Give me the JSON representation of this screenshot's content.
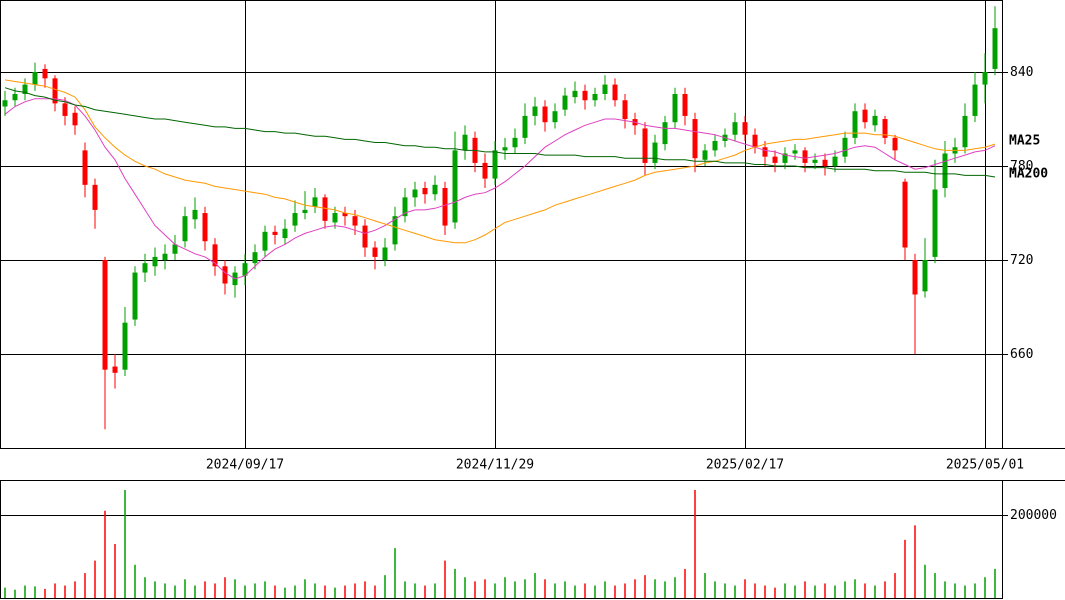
{
  "chart_data": [
    {
      "type": "candlestick",
      "up_color": "#00a000",
      "down_color": "#ff0000",
      "ylim": [
        600,
        886
      ],
      "yticks": [
        660,
        720,
        780,
        840
      ],
      "grid": true,
      "categories": [
        null,
        null,
        null,
        null,
        null,
        null,
        null,
        null,
        null,
        null,
        null,
        null,
        null,
        null,
        null,
        null,
        null,
        null,
        null,
        null,
        null,
        null,
        null,
        null,
        "2024/09/17",
        null,
        null,
        null,
        null,
        null,
        null,
        null,
        null,
        null,
        null,
        null,
        null,
        null,
        null,
        null,
        null,
        null,
        null,
        null,
        null,
        null,
        null,
        null,
        null,
        "2024/11/29",
        null,
        null,
        null,
        null,
        null,
        null,
        null,
        null,
        null,
        null,
        null,
        null,
        null,
        null,
        null,
        null,
        null,
        null,
        null,
        null,
        null,
        null,
        null,
        null,
        "2025/02/17",
        null,
        null,
        null,
        null,
        null,
        null,
        null,
        null,
        null,
        null,
        null,
        null,
        null,
        null,
        null,
        null,
        null,
        null,
        null,
        null,
        null,
        null,
        null,
        "2025/05/01",
        null
      ],
      "open": [
        818,
        822,
        826,
        832,
        842,
        836,
        820,
        814,
        790,
        768,
        720,
        652,
        650,
        682,
        712,
        716,
        720,
        724,
        732,
        746,
        750,
        730,
        716,
        704,
        710,
        718,
        726,
        738,
        734,
        742,
        750,
        754,
        760,
        744,
        750,
        748,
        742,
        728,
        720,
        730,
        748,
        760,
        766,
        762,
        766,
        744,
        790,
        798,
        782,
        772,
        790,
        792,
        798,
        812,
        818,
        808,
        816,
        824,
        828,
        822,
        826,
        832,
        822,
        810,
        804,
        782,
        794,
        808,
        826,
        810,
        784,
        790,
        796,
        800,
        808,
        800,
        792,
        786,
        782,
        788,
        790,
        782,
        784,
        780,
        786,
        798,
        816,
        806,
        810,
        798,
        770,
        720,
        700,
        722,
        766,
        788,
        792,
        812,
        832,
        842
      ],
      "high": [
        828,
        830,
        836,
        846,
        845,
        838,
        824,
        818,
        795,
        772,
        722,
        660,
        690,
        716,
        724,
        728,
        730,
        736,
        754,
        760,
        754,
        734,
        720,
        716,
        724,
        730,
        742,
        742,
        746,
        758,
        764,
        766,
        762,
        754,
        754,
        752,
        746,
        732,
        734,
        754,
        766,
        770,
        770,
        774,
        770,
        802,
        806,
        802,
        788,
        796,
        798,
        804,
        820,
        824,
        822,
        820,
        830,
        834,
        832,
        830,
        838,
        836,
        826,
        814,
        808,
        800,
        812,
        830,
        830,
        814,
        794,
        800,
        804,
        814,
        812,
        804,
        796,
        790,
        792,
        794,
        792,
        788,
        788,
        790,
        802,
        820,
        820,
        816,
        812,
        800,
        772,
        724,
        734,
        784,
        796,
        798,
        820,
        840,
        852,
        882
      ],
      "low": [
        812,
        818,
        822,
        828,
        830,
        815,
        806,
        800,
        760,
        740,
        612,
        638,
        646,
        678,
        706,
        710,
        714,
        720,
        728,
        740,
        726,
        710,
        698,
        696,
        704,
        714,
        722,
        730,
        730,
        738,
        746,
        750,
        740,
        740,
        742,
        736,
        722,
        714,
        716,
        726,
        744,
        754,
        756,
        758,
        736,
        740,
        784,
        776,
        766,
        768,
        784,
        788,
        794,
        806,
        802,
        804,
        812,
        820,
        816,
        818,
        822,
        818,
        804,
        800,
        774,
        778,
        790,
        804,
        806,
        776,
        780,
        786,
        792,
        796,
        796,
        788,
        780,
        776,
        778,
        784,
        776,
        778,
        774,
        776,
        782,
        794,
        804,
        802,
        794,
        784,
        720,
        660,
        696,
        718,
        760,
        782,
        788,
        808,
        820,
        838
      ],
      "close": [
        822,
        826,
        832,
        840,
        836,
        820,
        812,
        806,
        768,
        752,
        650,
        648,
        680,
        712,
        718,
        722,
        724,
        730,
        748,
        752,
        732,
        716,
        705,
        712,
        718,
        725,
        738,
        736,
        740,
        750,
        752,
        760,
        745,
        750,
        748,
        742,
        728,
        722,
        728,
        748,
        760,
        765,
        762,
        768,
        742,
        790,
        800,
        782,
        772,
        790,
        792,
        798,
        812,
        818,
        808,
        815,
        825,
        828,
        822,
        826,
        832,
        822,
        810,
        806,
        782,
        795,
        808,
        826,
        812,
        785,
        790,
        796,
        800,
        808,
        800,
        792,
        786,
        782,
        788,
        790,
        782,
        784,
        780,
        786,
        798,
        815,
        808,
        812,
        798,
        790,
        728,
        698,
        720,
        765,
        788,
        792,
        812,
        832,
        840,
        868
      ],
      "series": [
        {
          "color": "#e040c0",
          "values": [
            813,
            818,
            821,
            823,
            823,
            823,
            822,
            819,
            812,
            803,
            792,
            784,
            772,
            762,
            752,
            742,
            736,
            730,
            727,
            724,
            722,
            718,
            712,
            708,
            710,
            716,
            722,
            727,
            730,
            734,
            737,
            739,
            741,
            742,
            741,
            739,
            737,
            739,
            742,
            746,
            750,
            752,
            752,
            753,
            755,
            757,
            760,
            762,
            763,
            766,
            770,
            775,
            780,
            786,
            792,
            796,
            800,
            803,
            806,
            808,
            810,
            810,
            809,
            808,
            806,
            805,
            804,
            804,
            803,
            802,
            801,
            800,
            798,
            796,
            794,
            792,
            790,
            789,
            787,
            786,
            785,
            786,
            787,
            788,
            790,
            792,
            793,
            792,
            788,
            784,
            781,
            778,
            779,
            781,
            783,
            785,
            787,
            789,
            790,
            793
          ]
        },
        {
          "name": "MA25",
          "color": "#ff9900",
          "values": [
            835,
            834,
            833,
            832,
            831,
            829,
            827,
            824,
            816,
            805,
            798,
            792,
            787,
            783,
            780,
            778,
            775,
            773,
            771,
            770,
            769,
            767,
            766,
            765,
            764,
            763,
            762,
            760,
            759,
            757,
            755,
            754,
            753,
            752,
            750,
            749,
            747,
            745,
            743,
            741,
            739,
            737,
            735,
            733,
            732,
            731,
            731,
            733,
            736,
            740,
            744,
            746,
            748,
            750,
            752,
            755,
            757,
            759,
            761,
            763,
            765,
            767,
            769,
            771,
            774,
            776,
            777,
            778,
            779,
            780,
            782,
            783,
            785,
            787,
            790,
            792,
            794,
            795,
            796,
            797,
            797,
            798,
            799,
            800,
            801,
            801,
            801,
            800,
            800,
            799,
            797,
            795,
            793,
            791,
            790,
            790,
            790,
            791,
            792,
            794
          ]
        },
        {
          "name": "MA200",
          "color": "#006600",
          "values": [
            830,
            828,
            827,
            825,
            824,
            822,
            821,
            819,
            818,
            816,
            815,
            814,
            813,
            812,
            811,
            810,
            810,
            809,
            808,
            807,
            806,
            805,
            805,
            804,
            804,
            803,
            802,
            802,
            801,
            801,
            800,
            799,
            799,
            798,
            797,
            797,
            796,
            795,
            795,
            794,
            793,
            793,
            792,
            792,
            791,
            791,
            790,
            790,
            789,
            789,
            788,
            788,
            788,
            788,
            787,
            787,
            787,
            787,
            786,
            786,
            786,
            786,
            785,
            785,
            785,
            785,
            784,
            784,
            784,
            783,
            783,
            783,
            782,
            782,
            782,
            781,
            781,
            780,
            780,
            780,
            779,
            779,
            779,
            778,
            778,
            778,
            778,
            777,
            777,
            777,
            776,
            776,
            776,
            775,
            775,
            775,
            774,
            774,
            774,
            773
          ]
        }
      ]
    },
    {
      "type": "bar",
      "ylim": [
        0,
        284000
      ],
      "yticks": [
        200000
      ],
      "grid": true,
      "values": [
        25000,
        20000,
        30000,
        28000,
        22000,
        35000,
        30000,
        40000,
        60000,
        90000,
        210000,
        130000,
        260000,
        80000,
        50000,
        40000,
        35000,
        30000,
        45000,
        30000,
        40000,
        35000,
        50000,
        45000,
        30000,
        35000,
        40000,
        30000,
        25000,
        30000,
        45000,
        35000,
        30000,
        25000,
        30000,
        35000,
        40000,
        30000,
        55000,
        120000,
        40000,
        35000,
        30000,
        35000,
        90000,
        70000,
        50000,
        40000,
        45000,
        35000,
        50000,
        40000,
        45000,
        60000,
        45000,
        35000,
        40000,
        30000,
        35000,
        30000,
        40000,
        30000,
        35000,
        45000,
        55000,
        45000,
        40000,
        50000,
        70000,
        260000,
        60000,
        40000,
        35000,
        30000,
        45000,
        35000,
        30000,
        25000,
        35000,
        30000,
        40000,
        30000,
        35000,
        30000,
        40000,
        45000,
        35000,
        30000,
        40000,
        60000,
        140000,
        175000,
        80000,
        60000,
        40000,
        35000,
        30000,
        35000,
        50000,
        70000
      ]
    }
  ]
}
